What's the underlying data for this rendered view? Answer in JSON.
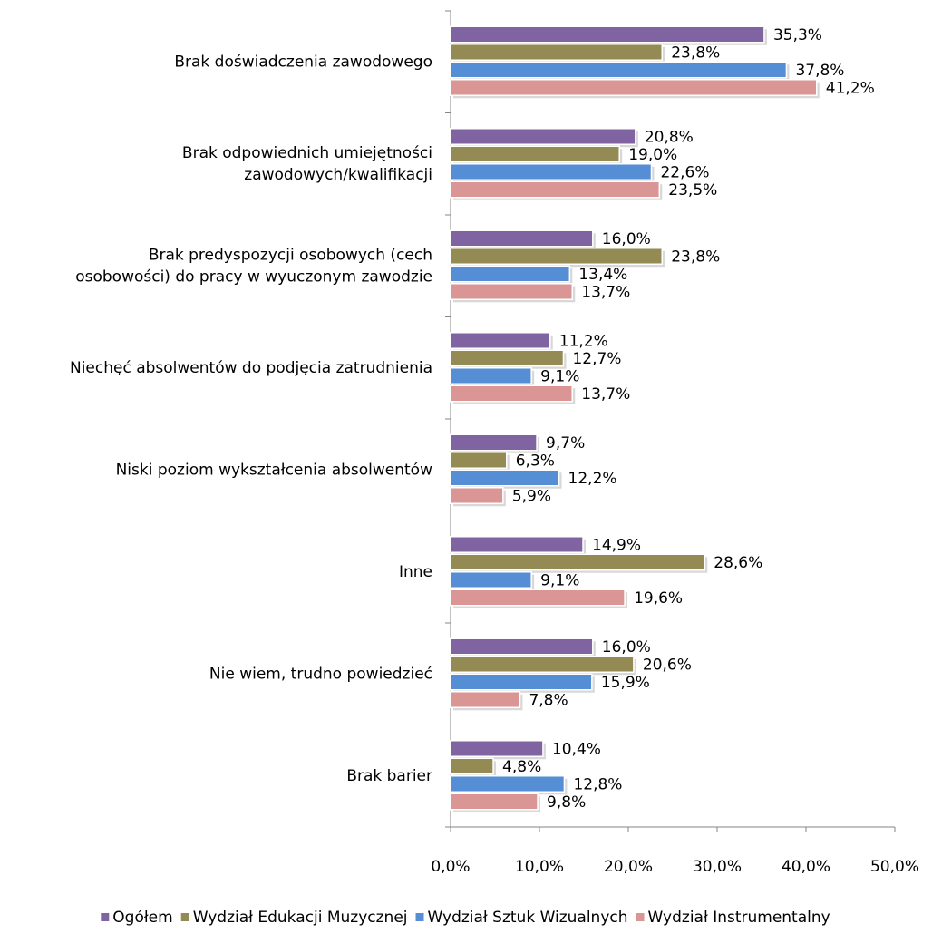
{
  "chart_data": {
    "type": "hbar",
    "categories": [
      "Brak doświadczenia zawodowego",
      "Brak odpowiednich umiejętności\nzawodowych/kwalifikacji",
      "Brak predyspozycji osobowych (cech\nosobowości) do pracy w wyuczonym zawodzie",
      "Niechęć absolwentów do podjęcia zatrudnienia",
      "Niski poziom wykształcenia absolwentów",
      "Inne",
      "Nie wiem, trudno powiedzieć",
      "Brak barier"
    ],
    "series": [
      {
        "name": "Ogółem",
        "color": "#8064a2",
        "values": [
          35.3,
          20.8,
          16.0,
          11.2,
          9.7,
          14.9,
          16.0,
          10.4
        ],
        "value_labels": [
          "35,3%",
          "20,8%",
          "16,0%",
          "11,2%",
          "9,7%",
          "14,9%",
          "16,0%",
          "10,4%"
        ]
      },
      {
        "name": "Wydział Edukacji Muzycznej",
        "color": "#948a54",
        "values": [
          23.8,
          19.0,
          23.8,
          12.7,
          6.3,
          28.6,
          20.6,
          4.8
        ],
        "value_labels": [
          "23,8%",
          "19,0%",
          "23,8%",
          "12,7%",
          "6,3%",
          "28,6%",
          "20,6%",
          "4,8%"
        ]
      },
      {
        "name": "Wydział Sztuk Wizualnych",
        "color": "#558ed5",
        "values": [
          37.8,
          22.6,
          13.4,
          9.1,
          12.2,
          9.1,
          15.9,
          12.8
        ],
        "value_labels": [
          "37,8%",
          "22,6%",
          "13,4%",
          "9,1%",
          "12,2%",
          "9,1%",
          "15,9%",
          "12,8%"
        ]
      },
      {
        "name": "Wydział Instrumentalny",
        "color": "#d99694",
        "values": [
          41.2,
          23.5,
          13.7,
          13.7,
          5.9,
          19.6,
          7.8,
          9.8
        ],
        "value_labels": [
          "41,2%",
          "23,5%",
          "13,7%",
          "13,7%",
          "5,9%",
          "19,6%",
          "7,8%",
          "9,8%"
        ]
      }
    ],
    "xlim": [
      0,
      50
    ],
    "xticks": [
      {
        "value": 0,
        "label": "0,0%"
      },
      {
        "value": 10,
        "label": "10,0%"
      },
      {
        "value": 20,
        "label": "20,0%"
      },
      {
        "value": 30,
        "label": "30,0%"
      },
      {
        "value": 40,
        "label": "40,0%"
      },
      {
        "value": 50,
        "label": "50,0%"
      }
    ],
    "legend": "bottom"
  }
}
